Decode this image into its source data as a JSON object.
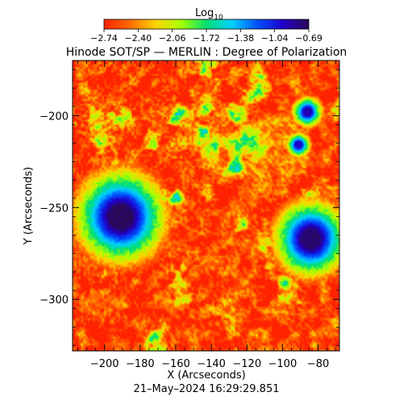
{
  "chart_data": {
    "type": "heatmap",
    "title": "Hinode SOT/SP — MERLIN : Degree of Polarization",
    "xlabel": "X (Arcseconds)",
    "ylabel": "Y (Arcseconds)",
    "xlim": [
      -218,
      -68
    ],
    "ylim": [
      -328,
      -170
    ],
    "x_ticks": [
      -200,
      -180,
      -160,
      -140,
      -120,
      -100,
      -80
    ],
    "x_tick_labels": [
      "−200",
      "−180",
      "−160",
      "−140",
      "−120",
      "−100",
      "−80"
    ],
    "y_ticks": [
      -200,
      -250,
      -300
    ],
    "y_tick_labels": [
      "−200",
      "−250",
      "−300"
    ],
    "colorbar": {
      "label_main": "Log",
      "label_sub": "10",
      "range": [
        -2.74,
        -0.69
      ],
      "tick_labels": [
        "−2.74",
        "−2.40",
        "−2.06",
        "−1.72",
        "−1.38",
        "−1.04",
        "−0.69"
      ],
      "colors": [
        "#ff2200",
        "#ff6a00",
        "#ffd200",
        "#a8ff00",
        "#00e070",
        "#00d0ff",
        "#0050ff",
        "#2000c8",
        "#2a0a55"
      ]
    },
    "features": [
      {
        "name": "sunspot",
        "x": -191,
        "y": -255,
        "radius": 17,
        "min_log": -0.7
      },
      {
        "name": "sunspot",
        "x": -84,
        "y": -267,
        "radius": 14,
        "min_log": -0.75
      },
      {
        "name": "pore",
        "x": -86,
        "y": -198,
        "radius": 5.5,
        "min_log": -0.9
      },
      {
        "name": "pore",
        "x": -91,
        "y": -216,
        "radius": 4.5,
        "min_log": -0.95
      }
    ],
    "background_log": -2.6,
    "timestamp": "21–May–2024 16:29:29.851"
  }
}
